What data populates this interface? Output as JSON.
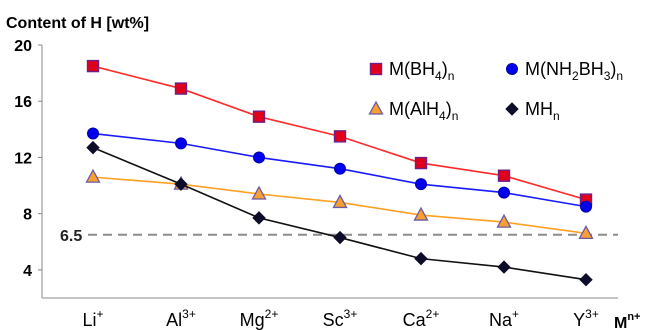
{
  "chart_data": {
    "type": "line",
    "title": "Content of H [wt%]",
    "xlabel_html": {
      "base": "M",
      "sup": "n+"
    },
    "categories": [
      {
        "base": "Li",
        "sup": "+"
      },
      {
        "base": "Al",
        "sup": "3+"
      },
      {
        "base": "Mg",
        "sup": "2+"
      },
      {
        "base": "Sc",
        "sup": "3+"
      },
      {
        "base": "Ca",
        "sup": "2+"
      },
      {
        "base": "Na",
        "sup": "+"
      },
      {
        "base": "Y",
        "sup": "3+"
      }
    ],
    "ylim": [
      2,
      20
    ],
    "yticks": [
      4,
      8,
      12,
      16,
      20
    ],
    "grid": false,
    "legend_position": "top-right",
    "reference_line": {
      "value": 6.5,
      "label": "6.5",
      "style": "dashed",
      "color": "#8c8c8c"
    },
    "series": [
      {
        "name": "M(BH4)n",
        "legend": [
          {
            "t": "M(BH"
          },
          {
            "t": "4",
            "sub": true
          },
          {
            "t": ")"
          },
          {
            "t": "n",
            "sub": true
          }
        ],
        "values": [
          18.5,
          16.9,
          14.9,
          13.5,
          11.6,
          10.7,
          9.0
        ],
        "line_color": "#ff2a2a",
        "marker": "square",
        "marker_fill": "#e0001a",
        "marker_stroke": "#6e1f8a"
      },
      {
        "name": "M(NH2BH3)n",
        "legend": [
          {
            "t": "M(NH"
          },
          {
            "t": "2",
            "sub": true
          },
          {
            "t": "BH"
          },
          {
            "t": "3",
            "sub": true
          },
          {
            "t": ")"
          },
          {
            "t": "n",
            "sub": true
          }
        ],
        "values": [
          13.7,
          13.0,
          12.0,
          11.2,
          10.1,
          9.5,
          8.5
        ],
        "line_color": "#1a1aff",
        "marker": "circle",
        "marker_fill": "#0000ee",
        "marker_stroke": "#0000aa"
      },
      {
        "name": "M(AlH4)n",
        "legend": [
          {
            "t": "M(AlH"
          },
          {
            "t": "4",
            "sub": true
          },
          {
            "t": ")"
          },
          {
            "t": "n",
            "sub": true
          }
        ],
        "values": [
          10.6,
          10.1,
          9.4,
          8.8,
          7.9,
          7.4,
          6.6
        ],
        "line_color": "#ffa020",
        "marker": "triangle",
        "marker_fill": "#f7a030",
        "marker_stroke": "#6a5aa8"
      },
      {
        "name": "MHn",
        "legend": [
          {
            "t": "MH"
          },
          {
            "t": "n",
            "sub": true
          }
        ],
        "values": [
          12.7,
          10.1,
          7.7,
          6.3,
          4.8,
          4.2,
          3.3
        ],
        "line_color": "#111111",
        "marker": "diamond",
        "marker_fill": "#0d0d2a",
        "marker_stroke": "#0d0d2a"
      }
    ]
  }
}
